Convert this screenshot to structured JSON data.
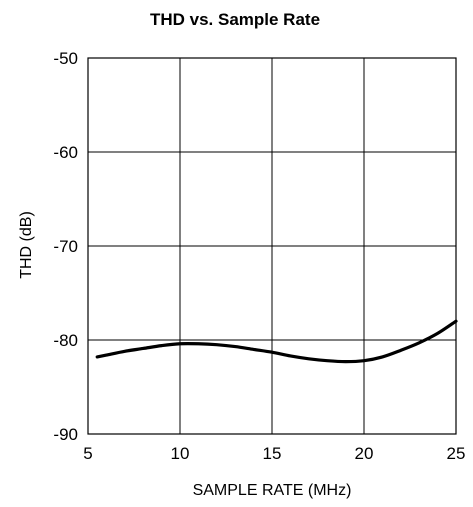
{
  "chart_data": {
    "type": "line",
    "title": "THD vs. Sample Rate",
    "xlabel": "SAMPLE RATE (MHz)",
    "ylabel": "THD (dB)",
    "xlim": [
      5,
      25
    ],
    "ylim": [
      -90,
      -50
    ],
    "x_ticks": [
      5,
      10,
      15,
      20,
      25
    ],
    "x_tick_labels": [
      "5",
      "10",
      "15",
      "20",
      "25"
    ],
    "y_ticks": [
      -50,
      -60,
      -70,
      -80,
      -90
    ],
    "y_tick_labels": [
      "-50",
      "-60",
      "-70",
      "-80",
      "-90"
    ],
    "grid": true,
    "legend": "none",
    "series": [
      {
        "line_color": "#000000",
        "x": [
          5.5,
          6,
          7,
          8,
          9,
          10,
          11,
          12,
          13,
          14,
          15,
          16,
          17,
          18,
          19,
          20,
          21,
          22,
          23,
          24,
          25
        ],
        "y": [
          -81.8,
          -81.6,
          -81.2,
          -80.9,
          -80.6,
          -80.4,
          -80.4,
          -80.5,
          -80.7,
          -81.0,
          -81.3,
          -81.7,
          -82.0,
          -82.2,
          -82.3,
          -82.2,
          -81.8,
          -81.1,
          -80.3,
          -79.3,
          -78.0
        ]
      }
    ]
  }
}
